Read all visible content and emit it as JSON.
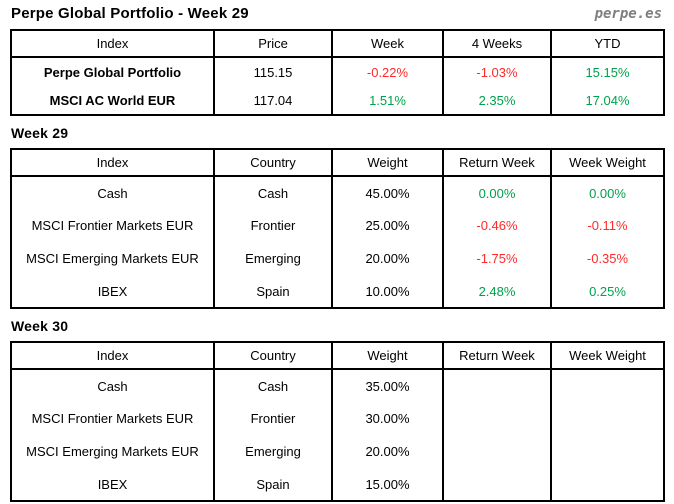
{
  "page": {
    "title": "Perpe Global Portfolio - Week 29",
    "brand": "perpe.es"
  },
  "colors": {
    "positive": "#00a14b",
    "negative": "#ff2a2a",
    "border": "#000000",
    "brand_gray": "#7d7f82"
  },
  "summary_table": {
    "columns": [
      "Index",
      "Price",
      "Week",
      "4 Weeks",
      "YTD"
    ],
    "rows": [
      {
        "cells": [
          "Perpe Global Portfolio",
          "115.15",
          "-0.22%",
          "-1.03%",
          "15.15%"
        ],
        "tones": [
          "bold",
          "plain",
          "neg",
          "neg",
          "pos"
        ]
      },
      {
        "cells": [
          "MSCI AC World EUR",
          "117.04",
          "1.51%",
          "2.35%",
          "17.04%"
        ],
        "tones": [
          "bold",
          "plain",
          "pos",
          "pos",
          "pos"
        ]
      }
    ]
  },
  "sections": [
    {
      "heading": "Week 29",
      "table": {
        "columns": [
          "Index",
          "Country",
          "Weight",
          "Return Week",
          "Week Weight"
        ],
        "rows": [
          {
            "cells": [
              "Cash",
              "Cash",
              "45.00%",
              "0.00%",
              "0.00%"
            ],
            "tones": [
              "plain",
              "plain",
              "plain",
              "pos",
              "pos"
            ]
          },
          {
            "cells": [
              "MSCI Frontier Markets EUR",
              "Frontier",
              "25.00%",
              "-0.46%",
              "-0.11%"
            ],
            "tones": [
              "plain",
              "plain",
              "plain",
              "neg",
              "neg"
            ]
          },
          {
            "cells": [
              "MSCI Emerging Markets EUR",
              "Emerging",
              "20.00%",
              "-1.75%",
              "-0.35%"
            ],
            "tones": [
              "plain",
              "plain",
              "plain",
              "neg",
              "neg"
            ]
          },
          {
            "cells": [
              "IBEX",
              "Spain",
              "10.00%",
              "2.48%",
              "0.25%"
            ],
            "tones": [
              "plain",
              "plain",
              "plain",
              "pos",
              "pos"
            ]
          }
        ]
      }
    },
    {
      "heading": "Week 30",
      "table": {
        "columns": [
          "Index",
          "Country",
          "Weight",
          "Return Week",
          "Week Weight"
        ],
        "rows": [
          {
            "cells": [
              "Cash",
              "Cash",
              "35.00%",
              "",
              ""
            ],
            "tones": [
              "plain",
              "plain",
              "plain",
              "plain",
              "plain"
            ]
          },
          {
            "cells": [
              "MSCI Frontier Markets EUR",
              "Frontier",
              "30.00%",
              "",
              ""
            ],
            "tones": [
              "plain",
              "plain",
              "plain",
              "plain",
              "plain"
            ]
          },
          {
            "cells": [
              "MSCI Emerging Markets EUR",
              "Emerging",
              "20.00%",
              "",
              ""
            ],
            "tones": [
              "plain",
              "plain",
              "plain",
              "plain",
              "plain"
            ]
          },
          {
            "cells": [
              "IBEX",
              "Spain",
              "15.00%",
              "",
              ""
            ],
            "tones": [
              "plain",
              "plain",
              "plain",
              "plain",
              "plain"
            ]
          }
        ]
      }
    }
  ]
}
